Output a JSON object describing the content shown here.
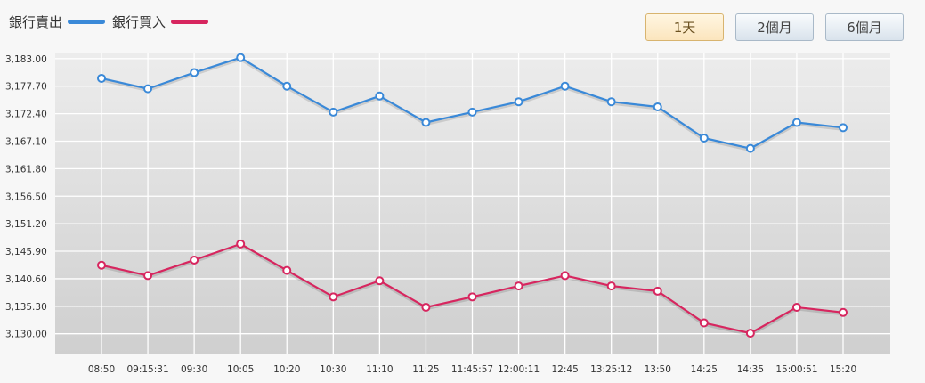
{
  "legend": {
    "sell_label": "銀行賣出",
    "buy_label": "銀行買入"
  },
  "range_buttons": [
    {
      "label": "1天",
      "active": true
    },
    {
      "label": "2個月",
      "active": false
    },
    {
      "label": "6個月",
      "active": false
    }
  ],
  "colors": {
    "sell": "#3a89d8",
    "buy": "#d7265f",
    "plot_bg_top": "#ececec",
    "plot_bg_bottom": "#cfcfcf"
  },
  "chart_data": {
    "type": "line",
    "categories": [
      "08:50",
      "09:15:31",
      "09:30",
      "10:05",
      "10:20",
      "10:30",
      "11:10",
      "11:25",
      "11:45:57",
      "12:00:11",
      "12:45",
      "13:25:12",
      "13:50",
      "14:25",
      "14:35",
      "15:00:51",
      "15:20"
    ],
    "y_ticks": [
      "3,130.00",
      "3,135.30",
      "3,140.60",
      "3,145.90",
      "3,151.20",
      "3,156.50",
      "3,161.80",
      "3,167.10",
      "3,172.40",
      "3,177.70",
      "3,183.00"
    ],
    "ylim": [
      3126.0,
      3184.0
    ],
    "grid": true,
    "legend_position": "top-left",
    "series": [
      {
        "name": "銀行賣出",
        "color": "#3a89d8",
        "values": [
          3179.2,
          3177.2,
          3180.3,
          3183.2,
          3177.7,
          3172.7,
          3175.8,
          3170.7,
          3172.7,
          3174.7,
          3177.7,
          3174.7,
          3173.7,
          3167.7,
          3165.7,
          3170.7,
          3169.7
        ]
      },
      {
        "name": "銀行買入",
        "color": "#d7265f",
        "values": [
          3143.2,
          3141.2,
          3144.2,
          3147.3,
          3142.2,
          3137.1,
          3140.2,
          3135.1,
          3137.1,
          3139.2,
          3141.2,
          3139.2,
          3138.2,
          3132.1,
          3130.1,
          3135.1,
          3134.1
        ]
      }
    ]
  }
}
